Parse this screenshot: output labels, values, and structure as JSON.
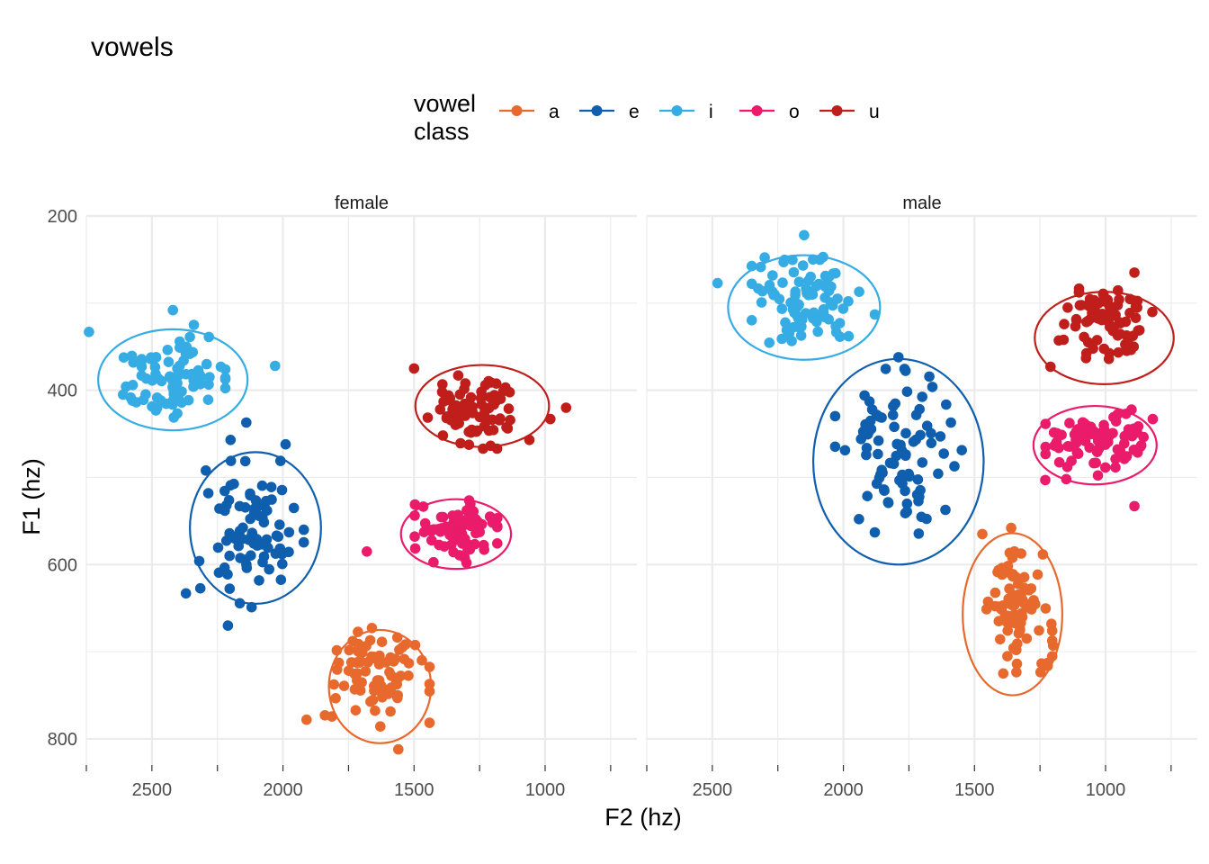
{
  "chart_data": {
    "type": "scatter",
    "title": "vowels",
    "xlabel": "F2 (hz)",
    "ylabel": "F1 (hz)",
    "x_reversed": true,
    "y_reversed": true,
    "xlim": [
      2750,
      650
    ],
    "ylim": [
      200,
      830
    ],
    "x_ticks": [
      2500,
      2000,
      1500,
      1000
    ],
    "x_tick_labels": [
      "2500",
      "2000",
      "1500",
      "1000"
    ],
    "y_ticks": [
      200,
      400,
      600,
      800
    ],
    "y_tick_labels": [
      "200",
      "400",
      "600",
      "800"
    ],
    "grid": true,
    "ellipses": true,
    "legend": {
      "title_lines": [
        "vowel",
        "class"
      ],
      "position": "top",
      "entries": [
        {
          "label": "a",
          "color": "#E8692D"
        },
        {
          "label": "e",
          "color": "#0F5FAE"
        },
        {
          "label": "i",
          "color": "#36ACE4"
        },
        {
          "label": "o",
          "color": "#EA1B6A"
        },
        {
          "label": "u",
          "color": "#BF1E1B"
        }
      ]
    },
    "panels": [
      {
        "name": "female",
        "clusters": [
          {
            "vowel": "a",
            "center": [
              1630,
              727
            ],
            "sd": [
              90,
              28
            ],
            "n": 80,
            "ellipse": {
              "cx": 1630,
              "cy": 740,
              "rx": 195,
              "ry": 65
            },
            "outliers": [
              [
                1910,
                778
              ],
              [
                1840,
                773
              ],
              [
                1560,
                812
              ],
              [
                1545,
                695
              ]
            ]
          },
          {
            "vowel": "e",
            "center": [
              2120,
              565
            ],
            "sd": [
              95,
              40
            ],
            "n": 85,
            "ellipse": {
              "cx": 2105,
              "cy": 558,
              "rx": 250,
              "ry": 87
            },
            "outliers": [
              [
                2210,
                670
              ],
              [
                2370,
                633
              ],
              [
                2200,
                457
              ],
              [
                2140,
                437
              ],
              [
                1990,
                462
              ]
            ]
          },
          {
            "vowel": "i",
            "center": [
              2430,
              385
            ],
            "sd": [
              100,
              22
            ],
            "n": 85,
            "ellipse": {
              "cx": 2420,
              "cy": 388,
              "rx": 285,
              "ry": 58
            },
            "outliers": [
              [
                2740,
                333
              ],
              [
                2610,
                405
              ],
              [
                2030,
                372
              ],
              [
                2340,
                325
              ],
              [
                2420,
                308
              ]
            ]
          },
          {
            "vowel": "o",
            "center": [
              1340,
              562
            ],
            "sd": [
              75,
              18
            ],
            "n": 80,
            "ellipse": {
              "cx": 1340,
              "cy": 565,
              "rx": 210,
              "ry": 40
            },
            "outliers": [
              [
                1680,
                585
              ],
              [
                1300,
                598
              ]
            ]
          },
          {
            "vowel": "u",
            "center": [
              1280,
              425
            ],
            "sd": [
              90,
              20
            ],
            "n": 80,
            "ellipse": {
              "cx": 1240,
              "cy": 418,
              "rx": 255,
              "ry": 47
            },
            "outliers": [
              [
                980,
                433
              ],
              [
                920,
                420
              ],
              [
                1060,
                457
              ],
              [
                1500,
                375
              ]
            ]
          }
        ]
      },
      {
        "name": "male",
        "clusters": [
          {
            "vowel": "a",
            "center": [
              1340,
              650
            ],
            "sd": [
              65,
              35
            ],
            "n": 80,
            "ellipse": {
              "cx": 1355,
              "cy": 657,
              "rx": 190,
              "ry": 93
            },
            "outliers": [
              [
                1360,
                558
              ],
              [
                1390,
                725
              ],
              [
                1470,
                565
              ],
              [
                1200,
                693
              ]
            ]
          },
          {
            "vowel": "e",
            "center": [
              1790,
              470
            ],
            "sd": [
              115,
              45
            ],
            "n": 85,
            "ellipse": {
              "cx": 1790,
              "cy": 482,
              "rx": 325,
              "ry": 118
            },
            "outliers": [
              [
                1790,
                362
              ],
              [
                1880,
                563
              ],
              [
                1590,
                437
              ],
              [
                1890,
                422
              ]
            ]
          },
          {
            "vowel": "i",
            "center": [
              2150,
              295
            ],
            "sd": [
              95,
              24
            ],
            "n": 85,
            "ellipse": {
              "cx": 2150,
              "cy": 305,
              "rx": 290,
              "ry": 60
            },
            "outliers": [
              [
                2480,
                277
              ],
              [
                2150,
                222
              ],
              [
                1880,
                313
              ],
              [
                1940,
                287
              ],
              [
                1980,
                338
              ]
            ]
          },
          {
            "vowel": "o",
            "center": [
              1040,
              460
            ],
            "sd": [
              90,
              18
            ],
            "n": 80,
            "ellipse": {
              "cx": 1040,
              "cy": 463,
              "rx": 235,
              "ry": 45
            },
            "outliers": [
              [
                890,
                533
              ],
              [
                1230,
                503
              ],
              [
                1150,
                502
              ],
              [
                820,
                433
              ]
            ]
          },
          {
            "vowel": "u",
            "center": [
              1000,
              322
            ],
            "sd": [
              85,
              20
            ],
            "n": 80,
            "ellipse": {
              "cx": 1005,
              "cy": 340,
              "rx": 265,
              "ry": 53
            },
            "outliers": [
              [
                1210,
                373
              ],
              [
                890,
                265
              ],
              [
                1160,
                342
              ]
            ]
          }
        ]
      }
    ]
  }
}
